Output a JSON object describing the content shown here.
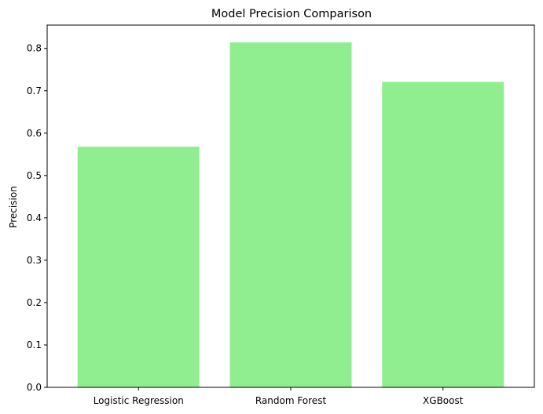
{
  "chart_data": {
    "type": "bar",
    "title": "Model Precision Comparison",
    "xlabel": "",
    "ylabel": "Precision",
    "categories": [
      "Logistic Regression",
      "Random Forest",
      "XGBoost"
    ],
    "values": [
      0.568,
      0.814,
      0.721
    ],
    "ylim": [
      0,
      0.855
    ],
    "yticks": [
      0.0,
      0.1,
      0.2,
      0.3,
      0.4,
      0.5,
      0.6,
      0.7,
      0.8
    ],
    "ytick_labels": [
      "0.0",
      "0.1",
      "0.2",
      "0.3",
      "0.4",
      "0.5",
      "0.6",
      "0.7",
      "0.8"
    ],
    "bar_color": "#90ee90",
    "grid": false,
    "legend": "none"
  }
}
